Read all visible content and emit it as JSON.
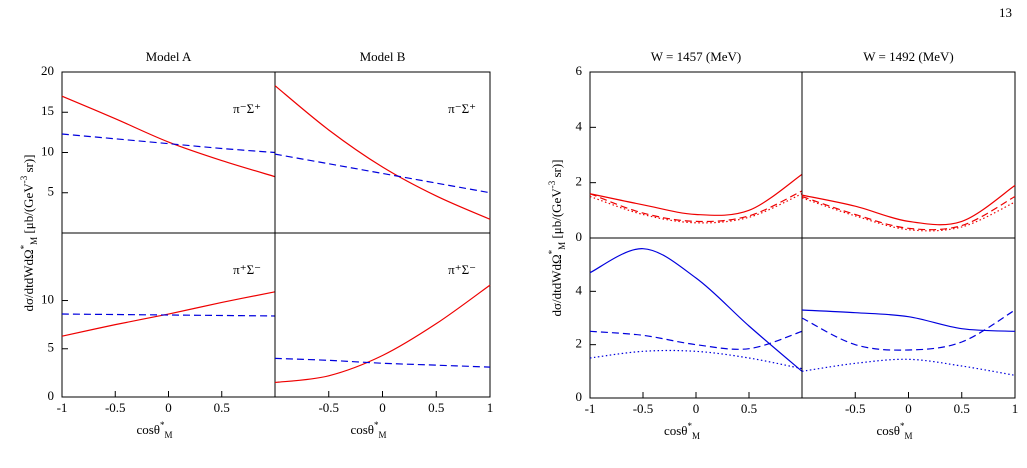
{
  "page_number": "13",
  "chart_data": [
    {
      "type": "line",
      "title": "Model A",
      "annotation": "π⁻Σ⁺",
      "xlim": [
        -1,
        1
      ],
      "ylim": [
        0,
        20
      ],
      "yticks": [
        5,
        10,
        15,
        20
      ],
      "ylabel": [
        {
          "text": "dσ/dtdWdΩ"
        },
        {
          "text": "*",
          "pos": "sup"
        },
        {
          "text": "M",
          "pos": "sub"
        },
        {
          "text": " [μb/(GeV"
        },
        {
          "text": "-3",
          "pos": "sup"
        },
        {
          "text": " sr)]"
        }
      ],
      "x": [
        -1,
        -0.5,
        0,
        0.5,
        1
      ],
      "series": [
        {
          "color": "#ee0000",
          "dash": "solid",
          "values": [
            17,
            14.2,
            11.3,
            9,
            7
          ]
        },
        {
          "color": "#0000dd",
          "dash": "dashed",
          "values": [
            12.3,
            11.7,
            11.1,
            10.5,
            10
          ]
        }
      ]
    },
    {
      "type": "line",
      "title": "Model B",
      "annotation": "π⁻Σ⁺",
      "xlim": [
        -1,
        1
      ],
      "ylim": [
        0,
        20
      ],
      "x": [
        -1,
        -0.5,
        0,
        0.5,
        1
      ],
      "series": [
        {
          "color": "#ee0000",
          "dash": "solid",
          "values": [
            18.3,
            12.8,
            8.2,
            4.6,
            1.7
          ]
        },
        {
          "color": "#0000dd",
          "dash": "dashed",
          "values": [
            9.8,
            8.6,
            7.4,
            6.2,
            5
          ]
        }
      ]
    },
    {
      "type": "line",
      "annotation": "π⁺Σ⁻",
      "xlim": [
        -1,
        1
      ],
      "ylim": [
        0,
        17
      ],
      "yticks": [
        0,
        5,
        10
      ],
      "xticks": [
        -1,
        -0.5,
        0,
        0.5
      ],
      "xlabel": [
        {
          "text": "cosθ"
        },
        {
          "text": "*",
          "pos": "sup"
        },
        {
          "text": "M",
          "pos": "sub"
        }
      ],
      "x": [
        -1,
        -0.5,
        0,
        0.5,
        1
      ],
      "series": [
        {
          "color": "#ee0000",
          "dash": "solid",
          "values": [
            6.3,
            7.5,
            8.6,
            9.8,
            10.9
          ]
        },
        {
          "color": "#0000dd",
          "dash": "dashed",
          "values": [
            8.6,
            8.55,
            8.5,
            8.45,
            8.4
          ]
        }
      ]
    },
    {
      "type": "line",
      "annotation": "π⁺Σ⁻",
      "xlim": [
        -1,
        1
      ],
      "ylim": [
        0,
        17
      ],
      "xticks": [
        -0.5,
        0,
        0.5,
        1
      ],
      "xlabel": [
        {
          "text": "cosθ"
        },
        {
          "text": "*",
          "pos": "sup"
        },
        {
          "text": "M",
          "pos": "sub"
        }
      ],
      "x": [
        -1,
        -0.5,
        0,
        0.5,
        1
      ],
      "series": [
        {
          "color": "#ee0000",
          "dash": "solid",
          "values": [
            1.5,
            2.2,
            4.3,
            7.6,
            11.6
          ]
        },
        {
          "color": "#0000dd",
          "dash": "dashed",
          "values": [
            4,
            3.8,
            3.5,
            3.3,
            3.1
          ]
        }
      ]
    },
    {
      "type": "line",
      "title": "W = 1457 (MeV)",
      "xlim": [
        -1,
        1
      ],
      "ylim": [
        0,
        6
      ],
      "yticks": [
        0,
        2,
        4,
        6
      ],
      "ylabel": [
        {
          "text": "dσ/dtdWdΩ"
        },
        {
          "text": "*",
          "pos": "sup"
        },
        {
          "text": "M",
          "pos": "sub"
        },
        {
          "text": " [μb/(GeV"
        },
        {
          "text": "-3",
          "pos": "sup"
        },
        {
          "text": " sr)]"
        }
      ],
      "x": [
        -1,
        -0.5,
        0,
        0.5,
        1
      ],
      "series": [
        {
          "color": "#ee0000",
          "dash": "solid",
          "values": [
            1.6,
            1.2,
            0.85,
            1.0,
            2.3
          ]
        },
        {
          "color": "#ee0000",
          "dash": "dashed",
          "values": [
            1.6,
            0.9,
            0.6,
            0.8,
            1.7
          ]
        },
        {
          "color": "#ee0000",
          "dash": "dotted",
          "values": [
            1.5,
            0.85,
            0.55,
            0.75,
            1.6
          ]
        }
      ]
    },
    {
      "type": "line",
      "title": "W = 1492 (MeV)",
      "xlim": [
        -1,
        1
      ],
      "ylim": [
        0,
        6
      ],
      "x": [
        -1,
        -0.5,
        0,
        0.5,
        1
      ],
      "series": [
        {
          "color": "#ee0000",
          "dash": "solid",
          "values": [
            1.55,
            1.15,
            0.6,
            0.6,
            1.9
          ]
        },
        {
          "color": "#ee0000",
          "dash": "dashed",
          "values": [
            1.5,
            0.85,
            0.35,
            0.45,
            1.5
          ]
        },
        {
          "color": "#ee0000",
          "dash": "dotted",
          "values": [
            1.45,
            0.8,
            0.3,
            0.4,
            1.3
          ]
        }
      ]
    },
    {
      "type": "line",
      "xlim": [
        -1,
        1
      ],
      "ylim": [
        0,
        6
      ],
      "yticks": [
        0,
        2,
        4
      ],
      "xticks": [
        -1,
        -0.5,
        0,
        0.5
      ],
      "xlabel": [
        {
          "text": "cosθ"
        },
        {
          "text": "*",
          "pos": "sup"
        },
        {
          "text": "M",
          "pos": "sub"
        }
      ],
      "x": [
        -1,
        -0.5,
        0,
        0.5,
        1
      ],
      "series": [
        {
          "color": "#0000dd",
          "dash": "solid",
          "values": [
            4.7,
            5.6,
            4.5,
            2.7,
            1
          ]
        },
        {
          "color": "#0000dd",
          "dash": "dashed",
          "values": [
            2.5,
            2.35,
            2.0,
            1.85,
            2.5
          ]
        },
        {
          "color": "#0000dd",
          "dash": "dotted",
          "values": [
            1.5,
            1.75,
            1.75,
            1.5,
            1.1
          ]
        }
      ]
    },
    {
      "type": "line",
      "xlim": [
        -1,
        1
      ],
      "ylim": [
        0,
        6
      ],
      "xticks": [
        -0.5,
        0,
        0.5,
        1
      ],
      "xlabel": [
        {
          "text": "cosθ"
        },
        {
          "text": "*",
          "pos": "sup"
        },
        {
          "text": "M",
          "pos": "sub"
        }
      ],
      "x": [
        -1,
        -0.5,
        0,
        0.5,
        1
      ],
      "series": [
        {
          "color": "#0000dd",
          "dash": "solid",
          "values": [
            3.3,
            3.2,
            3.05,
            2.6,
            2.5
          ]
        },
        {
          "color": "#0000dd",
          "dash": "dashed",
          "values": [
            3.0,
            2.0,
            1.8,
            2.1,
            3.3
          ]
        },
        {
          "color": "#0000dd",
          "dash": "dotted",
          "values": [
            1.0,
            1.3,
            1.45,
            1.2,
            0.85
          ]
        }
      ]
    }
  ]
}
